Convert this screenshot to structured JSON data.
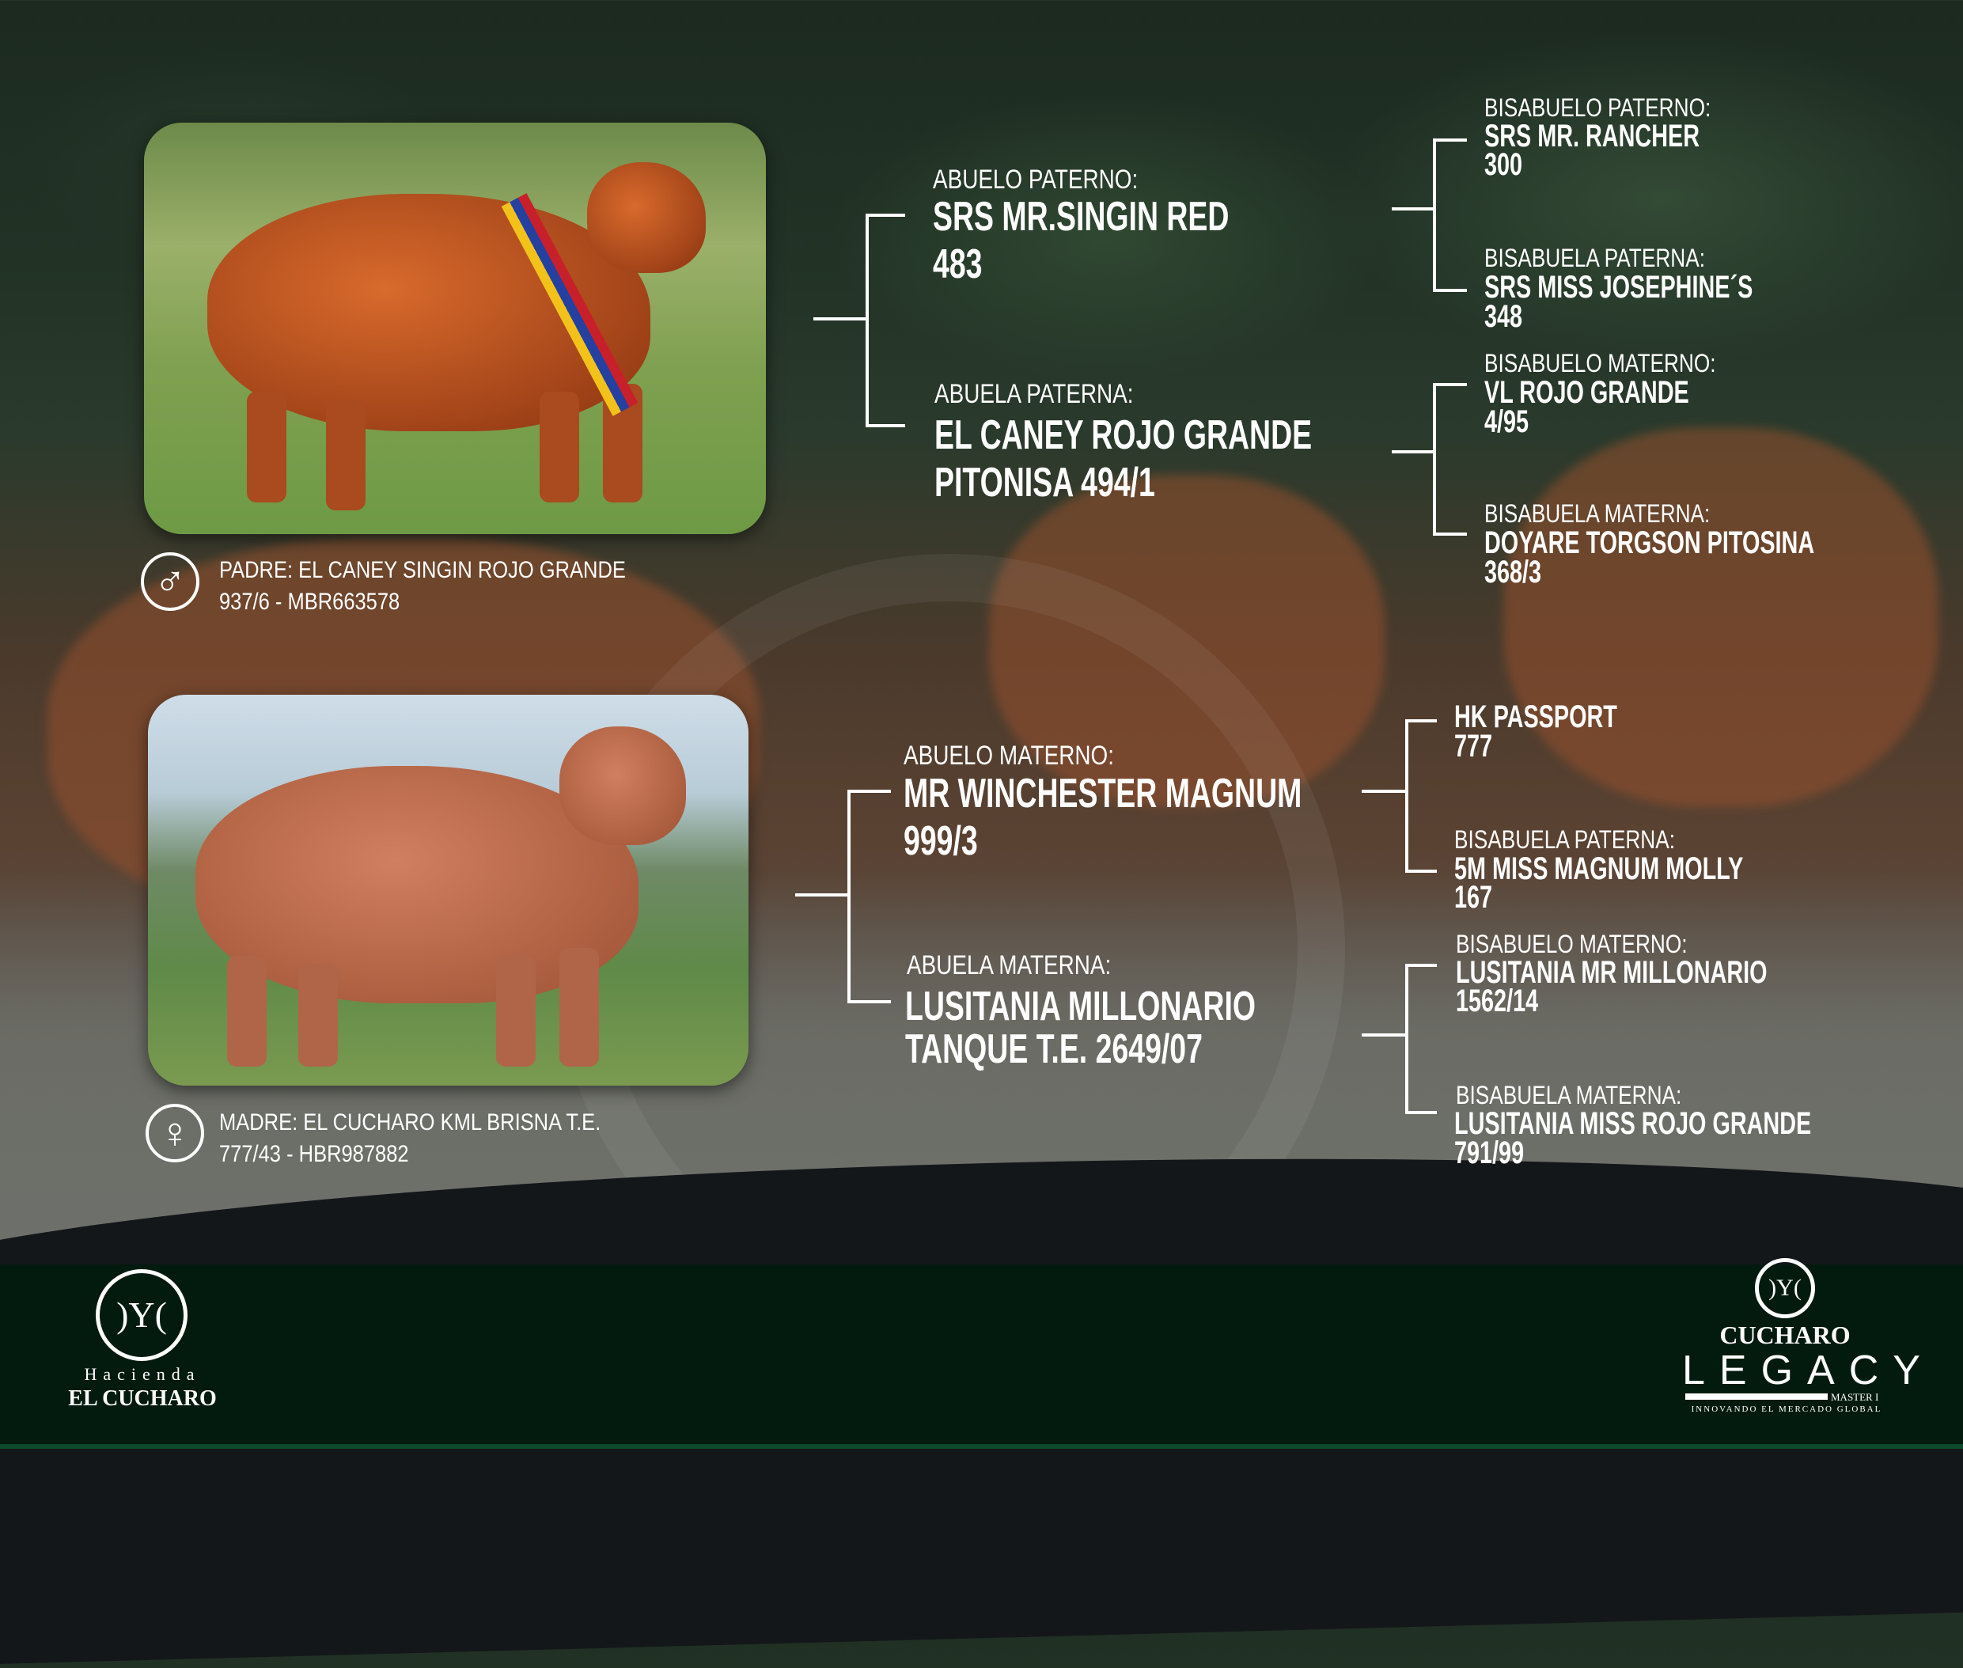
{
  "padre": {
    "label": "PADRE: EL CANEY SINGIN ROJO GRANDE",
    "reg": "937/6 - MBR663578",
    "icon": "male-icon",
    "symbol": "♂"
  },
  "madre": {
    "label": "MADRE: EL CUCHARO KML BRISNA T.E.",
    "reg": "777/43 - HBR987882",
    "icon": "female-icon",
    "symbol": "♀"
  },
  "paternal": {
    "abuelo": {
      "label": "ABUELO PATERNO:",
      "name1": "SRS MR.SINGIN RED",
      "name2": "483"
    },
    "abuela": {
      "label": "ABUELA PATERNA:",
      "name1": "EL CANEY ROJO GRANDE",
      "name2": "PITONISA 494/1"
    },
    "bisabuelo_p": {
      "label": "BISABUELO PATERNO:",
      "name1": "SRS MR. RANCHER",
      "name2": "300"
    },
    "bisabuela_p": {
      "label": "BISABUELA PATERNA:",
      "name1": "SRS MISS JOSEPHINE´S",
      "name2": "348"
    },
    "bisabuelo_m": {
      "label": "BISABUELO MATERNO:",
      "name1": "VL ROJO GRANDE",
      "name2": "4/95"
    },
    "bisabuela_m": {
      "label": "BISABUELA MATERNA:",
      "name1": "DOYARE TORGSON PITOSINA",
      "name2": "368/3"
    }
  },
  "maternal": {
    "abuelo": {
      "label": "ABUELO MATERNO:",
      "name1": "MR WINCHESTER MAGNUM",
      "name2": "999/3"
    },
    "abuela": {
      "label": "ABUELA MATERNA:",
      "name1": "LUSITANIA MILLONARIO",
      "name2": "TANQUE T.E. 2649/07"
    },
    "bisabuelo_p": {
      "name1": "HK PASSPORT",
      "name2": "777"
    },
    "bisabuela_p": {
      "label": "BISABUELA PATERNA:",
      "name1": "5M MISS MAGNUM MOLLY",
      "name2": "167"
    },
    "bisabuelo_m": {
      "label": "BISABUELO MATERNO:",
      "name1": "LUSITANIA MR MILLONARIO",
      "name2": "1562/14"
    },
    "bisabuela_m": {
      "label": "BISABUELA MATERNA:",
      "name1": "LUSITANIA MISS ROJO GRANDE",
      "name2": "791/99"
    }
  },
  "footer": {
    "left_logo": {
      "mark": ")Y(",
      "line1": "Hacienda",
      "line2": "EL CUCHARO"
    },
    "right_logo": {
      "mark": ")Y(",
      "line1": "CUCHARO",
      "line2": "LEGACY",
      "line3": "MASTER I",
      "tagline": "INNOVANDO EL MERCADO GLOBAL"
    }
  },
  "colors": {
    "footer_bg": "#031b0f",
    "text": "#ffffff",
    "curve": "#14171a"
  }
}
